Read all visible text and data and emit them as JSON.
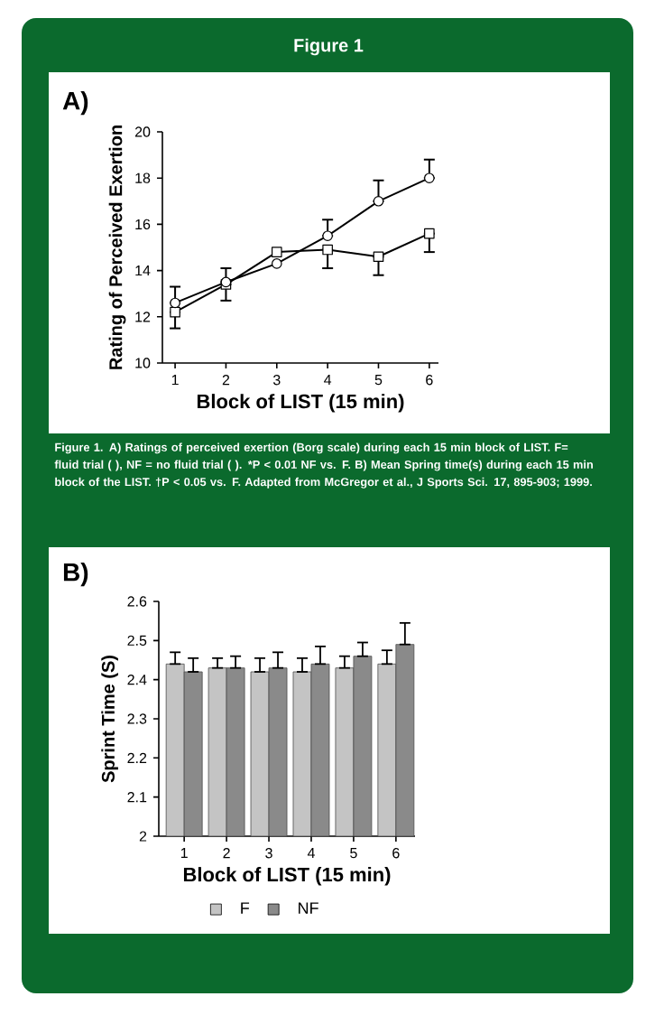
{
  "chart_data": [
    {
      "type": "line",
      "title": "A)",
      "xlabel": "Block of LIST (15 min)",
      "ylabel": "Rating of Perceived Exertion",
      "categories": [
        "1",
        "2",
        "3",
        "4",
        "5",
        "6"
      ],
      "ylim": [
        10,
        20
      ],
      "yticks": [
        10,
        12,
        14,
        16,
        18,
        20
      ],
      "annotations": [
        "Figure 1",
        "Figure 1. A) Ratings of perceived exertion (Borg scale) during each 15 min block of LIST. F= fluid trial ( ), NF = no fluid trial ( ). *P < 0.01 NF vs. F. B) Mean Spring time(s) during each 15 min block of the LIST. †P < 0.05 vs. F. Adapted from McGregor et al., J Sports Sci. 17, 895-903; 1999."
      ],
      "series": [
        {
          "color": "#000000",
          "marker": "circle",
          "values": [
            12.6,
            13.5,
            14.3,
            15.5,
            17.0,
            18.0
          ],
          "errors": [
            [
              12.6,
              13.3
            ],
            [
              13.5,
              14.1
            ],
            null,
            [
              15.5,
              16.2
            ],
            [
              17.0,
              17.9
            ],
            [
              18.0,
              18.8
            ]
          ]
        },
        {
          "color": "#000000",
          "marker": "square",
          "values": [
            12.2,
            13.4,
            14.8,
            14.9,
            14.6,
            15.6
          ],
          "errors": [
            [
              11.5,
              12.2
            ],
            [
              12.7,
              13.4
            ],
            null,
            [
              14.1,
              14.9
            ],
            [
              13.8,
              14.6
            ],
            [
              14.8,
              15.6
            ]
          ]
        }
      ]
    },
    {
      "type": "bar",
      "title": "B)",
      "xlabel": "Block of LIST (15 min)",
      "ylabel": "Sprint Time (S)",
      "categories": [
        "1",
        "2",
        "3",
        "4",
        "5",
        "6"
      ],
      "ylim": [
        2,
        2.6
      ],
      "yticks": [
        2,
        2.1,
        2.2,
        2.3,
        2.4,
        2.5,
        2.6
      ],
      "legend": "bottom",
      "series": [
        {
          "name": "F",
          "color": "#c4c4c4",
          "values": [
            2.44,
            2.43,
            2.42,
            2.42,
            2.43,
            2.44
          ],
          "errors": [
            [
              2.44,
              2.47
            ],
            [
              2.43,
              2.455
            ],
            [
              2.42,
              2.455
            ],
            [
              2.42,
              2.455
            ],
            [
              2.43,
              2.46
            ],
            [
              2.44,
              2.475
            ]
          ]
        },
        {
          "name": "NF",
          "color": "#8a8a8a",
          "values": [
            2.42,
            2.43,
            2.43,
            2.44,
            2.46,
            2.49
          ],
          "errors": [
            [
              2.42,
              2.455
            ],
            [
              2.43,
              2.46
            ],
            [
              2.43,
              2.47
            ],
            [
              2.44,
              2.485
            ],
            [
              2.46,
              2.495
            ],
            [
              2.49,
              2.545
            ]
          ]
        }
      ]
    }
  ]
}
